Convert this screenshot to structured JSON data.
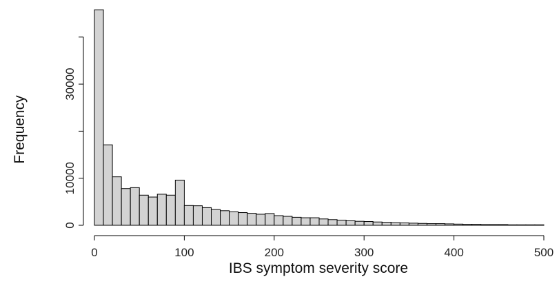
{
  "chart_data": {
    "type": "bar",
    "subtype": "histogram",
    "xlabel": "IBS symptom severity score",
    "ylabel": "Frequency",
    "bin_width": 10,
    "xlim": [
      0,
      500
    ],
    "ylim": [
      0,
      46000
    ],
    "x_ticks": [
      0,
      100,
      200,
      300,
      400,
      500
    ],
    "y_ticks": [
      0,
      10000,
      30000
    ],
    "x_tick_labels": [
      "0",
      "100",
      "200",
      "300",
      "400",
      "500"
    ],
    "y_tick_labels": [
      "0",
      "10000",
      "30000"
    ],
    "bin_starts": [
      0,
      10,
      20,
      30,
      40,
      50,
      60,
      70,
      80,
      90,
      100,
      110,
      120,
      130,
      140,
      150,
      160,
      170,
      180,
      190,
      200,
      210,
      220,
      230,
      240,
      250,
      260,
      270,
      280,
      290,
      300,
      310,
      320,
      330,
      340,
      350,
      360,
      370,
      380,
      390,
      400,
      410,
      420,
      430,
      440,
      450,
      460,
      470,
      480,
      490
    ],
    "values": [
      45800,
      17100,
      10300,
      7800,
      8000,
      6400,
      6000,
      6600,
      6400,
      9600,
      4200,
      4150,
      3750,
      3350,
      3100,
      2850,
      2700,
      2550,
      2350,
      2500,
      2050,
      1900,
      1700,
      1600,
      1600,
      1350,
      1200,
      1100,
      950,
      850,
      800,
      700,
      650,
      550,
      500,
      450,
      400,
      350,
      350,
      300,
      250,
      200,
      200,
      150,
      150,
      150,
      100,
      100,
      100,
      100
    ],
    "bar_fill": "#d3d3d3",
    "bar_stroke": "#000000",
    "grid": false
  }
}
